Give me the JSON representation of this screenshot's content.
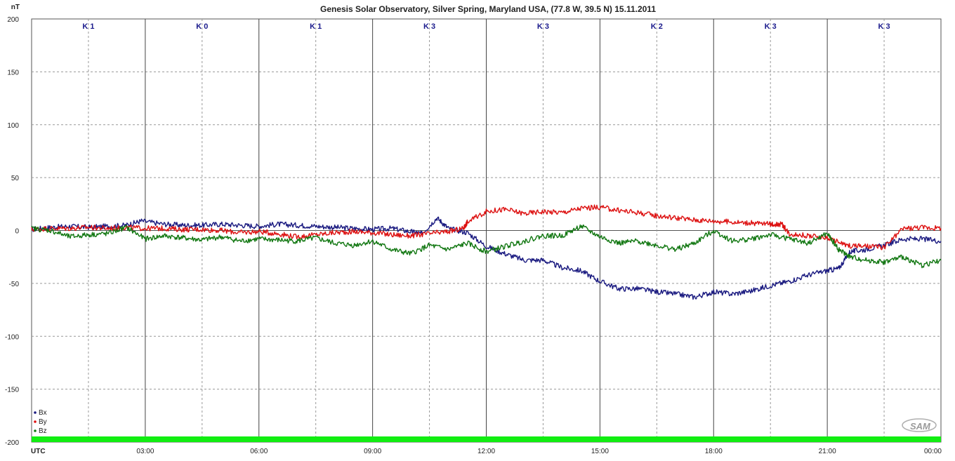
{
  "chart_data": {
    "type": "line",
    "title": "Genesis Solar Observatory, Silver Spring, Maryland USA, (77.8 W, 39.5 N)  15.11.2011",
    "ylabel": "nT",
    "xlabel": "UTC",
    "ylim": [
      -200,
      200
    ],
    "yticks": [
      200,
      150,
      100,
      50,
      0,
      -50,
      -100,
      -150,
      -200
    ],
    "xlim": [
      0,
      24
    ],
    "xtick_labels": [
      "03:00",
      "06:00",
      "09:00",
      "12:00",
      "15:00",
      "18:00",
      "21:00",
      "00:00"
    ],
    "xtick_hours": [
      3,
      6,
      9,
      12,
      15,
      18,
      21,
      24
    ],
    "grid": true,
    "legend_position": "bottom-left",
    "k_index_labels": [
      "K 1",
      "K 0",
      "K 1",
      "K 3",
      "K 3",
      "K 2",
      "K 3",
      "K 3"
    ],
    "series": [
      {
        "name": "Bx",
        "color": "#1a1a80",
        "x": [
          0,
          0.5,
          1,
          1.5,
          2,
          2.5,
          2.9,
          3.5,
          4,
          4.5,
          5,
          5.5,
          6,
          6.5,
          7,
          7.5,
          8,
          8.5,
          9,
          9.5,
          10,
          10.3,
          10.7,
          11,
          11.5,
          12,
          12.5,
          13,
          13.5,
          14,
          14.5,
          15,
          15.5,
          16,
          16.5,
          17,
          17.5,
          18,
          18.5,
          19,
          19.5,
          20,
          20.5,
          21,
          21.3,
          21.6,
          22,
          22.5,
          23,
          23.5,
          24
        ],
        "y": [
          1,
          3,
          4,
          3,
          4,
          5,
          9,
          6,
          5,
          5,
          6,
          5,
          4,
          6,
          5,
          4,
          3,
          2,
          1,
          2,
          -1,
          -3,
          12,
          2,
          -2,
          -15,
          -22,
          -28,
          -28,
          -35,
          -38,
          -48,
          -55,
          -55,
          -58,
          -60,
          -63,
          -58,
          -60,
          -57,
          -52,
          -48,
          -42,
          -38,
          -36,
          -20,
          -18,
          -14,
          -8,
          -8,
          -10
        ]
      },
      {
        "name": "By",
        "color": "#dd1111",
        "x": [
          0,
          0.5,
          1,
          1.5,
          2,
          2.5,
          3,
          3.5,
          4,
          4.5,
          5,
          5.5,
          6,
          6.5,
          7,
          7.5,
          8,
          8.5,
          9,
          9.5,
          10,
          10.5,
          11,
          11.4,
          11.5,
          12,
          12.5,
          13,
          13.5,
          14,
          14.5,
          15,
          15.5,
          16,
          16.5,
          17,
          17.5,
          18,
          18.5,
          19,
          19.5,
          19.8,
          20,
          20.5,
          21,
          21.5,
          22,
          22.5,
          23,
          23.5,
          24
        ],
        "y": [
          1,
          2,
          2,
          3,
          2,
          3,
          2,
          2,
          1,
          1,
          0,
          -2,
          -1,
          -3,
          -6,
          -4,
          -2,
          -1,
          -2,
          -4,
          -5,
          -3,
          -1,
          2,
          8,
          18,
          20,
          16,
          18,
          17,
          21,
          22,
          19,
          17,
          14,
          12,
          10,
          9,
          8,
          7,
          6,
          6,
          -3,
          -5,
          -7,
          -14,
          -15,
          -16,
          2,
          3,
          2
        ]
      },
      {
        "name": "Bz",
        "color": "#117711",
        "x": [
          0,
          0.5,
          1,
          1.5,
          2,
          2.5,
          3,
          3.5,
          4,
          4.5,
          5,
          5.5,
          6,
          6.5,
          7,
          7.5,
          8,
          8.5,
          9,
          9.5,
          10,
          10.5,
          11,
          11.5,
          12,
          12.5,
          13,
          13.5,
          14,
          14.5,
          15,
          15.5,
          16,
          16.5,
          17,
          17.5,
          18,
          18.5,
          19,
          19.5,
          20,
          20.5,
          21,
          21.3,
          21.6,
          22,
          22.5,
          23,
          23.5,
          24
        ],
        "y": [
          2,
          0,
          -6,
          -4,
          -3,
          3,
          -8,
          -5,
          -7,
          -9,
          -6,
          -10,
          -8,
          -9,
          -10,
          -7,
          -12,
          -14,
          -10,
          -18,
          -22,
          -14,
          -18,
          -12,
          -20,
          -15,
          -10,
          -5,
          -5,
          4,
          -6,
          -12,
          -10,
          -14,
          -18,
          -12,
          0,
          -10,
          -8,
          -4,
          -8,
          -12,
          -3,
          -18,
          -25,
          -28,
          -30,
          -25,
          -33,
          -28
        ]
      }
    ]
  }
}
